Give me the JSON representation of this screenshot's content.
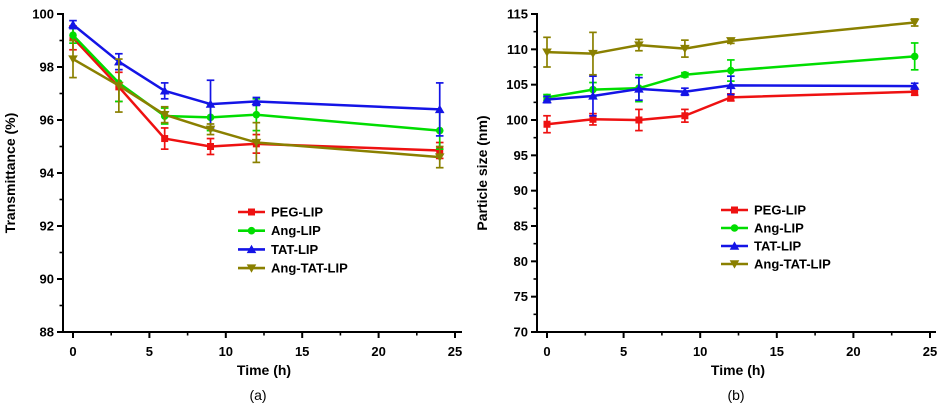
{
  "figure_background": "#ffffff",
  "chart_data": [
    {
      "type": "line",
      "panel": "a",
      "caption": "(a)",
      "xlabel": "Time (h)",
      "ylabel": "Transmittance (%)",
      "grid": false,
      "legend_position": "center-right",
      "x": [
        0,
        3,
        6,
        9,
        12,
        24
      ],
      "xticks": [
        0,
        5,
        10,
        15,
        20,
        25
      ],
      "xlim": [
        0,
        25
      ],
      "yticks": [
        88,
        90,
        92,
        94,
        96,
        98,
        100
      ],
      "ylim": [
        88,
        100
      ],
      "series": [
        {
          "name": "PEG-LIP",
          "color": "#ee1111",
          "marker": "square",
          "y": [
            99.1,
            97.25,
            95.3,
            95.0,
            95.1,
            94.85
          ],
          "err": [
            0.45,
            0.55,
            0.4,
            0.3,
            0.35,
            0.3
          ]
        },
        {
          "name": "Ang-LIP",
          "color": "#00dd00",
          "marker": "circle",
          "y": [
            99.2,
            97.4,
            96.15,
            96.1,
            96.2,
            95.6
          ],
          "err": [
            0.3,
            0.7,
            0.3,
            0.5,
            0.6,
            0.7
          ]
        },
        {
          "name": "TAT-LIP",
          "color": "#1414e6",
          "marker": "triangle-up",
          "y": [
            99.6,
            98.2,
            97.1,
            96.6,
            96.7,
            96.4
          ],
          "err": [
            0.15,
            0.3,
            0.3,
            0.9,
            0.15,
            1.0
          ]
        },
        {
          "name": "Ang-TAT-LIP",
          "color": "#8a8000",
          "marker": "triangle-down",
          "y": [
            98.3,
            97.3,
            96.2,
            95.65,
            95.15,
            94.6
          ],
          "err": [
            0.7,
            1.0,
            0.3,
            0.2,
            0.75,
            0.4
          ]
        }
      ]
    },
    {
      "type": "line",
      "panel": "b",
      "caption": "(b)",
      "xlabel": "Time (h)",
      "ylabel": "Particle size (nm)",
      "grid": false,
      "legend_position": "center-right",
      "x": [
        0,
        3,
        6,
        9,
        12,
        24
      ],
      "xticks": [
        0,
        5,
        10,
        15,
        20,
        25
      ],
      "xlim": [
        0,
        25
      ],
      "yticks": [
        70,
        75,
        80,
        85,
        90,
        95,
        100,
        105,
        110,
        115
      ],
      "ylim": [
        70,
        115
      ],
      "series": [
        {
          "name": "PEG-LIP",
          "color": "#ee1111",
          "marker": "square",
          "y": [
            99.4,
            100.1,
            100.0,
            100.6,
            103.2,
            104.0
          ],
          "err": [
            1.2,
            0.8,
            1.5,
            0.9,
            0.5,
            0.5
          ]
        },
        {
          "name": "Ang-LIP",
          "color": "#00dd00",
          "marker": "circle",
          "y": [
            103.2,
            104.3,
            104.5,
            106.4,
            107.0,
            109.0
          ],
          "err": [
            0.4,
            1.0,
            1.9,
            0.3,
            1.5,
            1.9
          ]
        },
        {
          "name": "TAT-LIP",
          "color": "#1414e6",
          "marker": "triangle-up",
          "y": [
            102.9,
            103.4,
            104.4,
            104.0,
            104.9,
            104.8
          ],
          "err": [
            0.45,
            2.8,
            1.6,
            0.5,
            1.3,
            0.4
          ]
        },
        {
          "name": "Ang-TAT-LIP",
          "color": "#8a8000",
          "marker": "triangle-down",
          "y": [
            109.6,
            109.4,
            110.6,
            110.1,
            111.2,
            113.8
          ],
          "err": [
            2.1,
            3.0,
            0.8,
            1.2,
            0.35,
            0.5
          ]
        }
      ]
    }
  ]
}
